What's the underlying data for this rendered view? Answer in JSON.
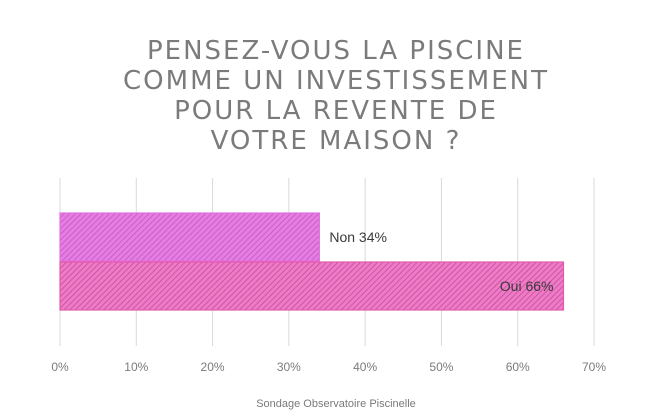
{
  "title_lines": [
    "PENSEZ-VOUS LA PISCINE",
    "COMME UN INVESTISSEMENT",
    "POUR LA REVENTE DE",
    "VOTRE MAISON ?"
  ],
  "source": "Sondage Observatoire Piscinelle",
  "colors": {
    "bar_fill": "#e47ee0",
    "bar_stroke": "#e070e0",
    "bar_hatch": "#c44fc4",
    "oui_fill": "#ec7bc8",
    "oui_stroke": "#e35aaa",
    "oui_hatch": "#c9438f",
    "grid": "#d9d9d9",
    "text": "#7b7b7b",
    "label": "#3a3a3a"
  },
  "chart_data": {
    "type": "bar",
    "orientation": "horizontal",
    "categories": [
      "Non",
      "Oui"
    ],
    "values": [
      34,
      66
    ],
    "data_labels": [
      "Non 34%",
      "Oui 66%"
    ],
    "xlim": [
      0,
      70
    ],
    "xticks": [
      0,
      10,
      20,
      30,
      40,
      50,
      60,
      70
    ],
    "xtick_labels": [
      "0%",
      "10%",
      "20%",
      "30%",
      "40%",
      "50%",
      "60%",
      "70%"
    ],
    "grid": true,
    "legend": "none"
  }
}
